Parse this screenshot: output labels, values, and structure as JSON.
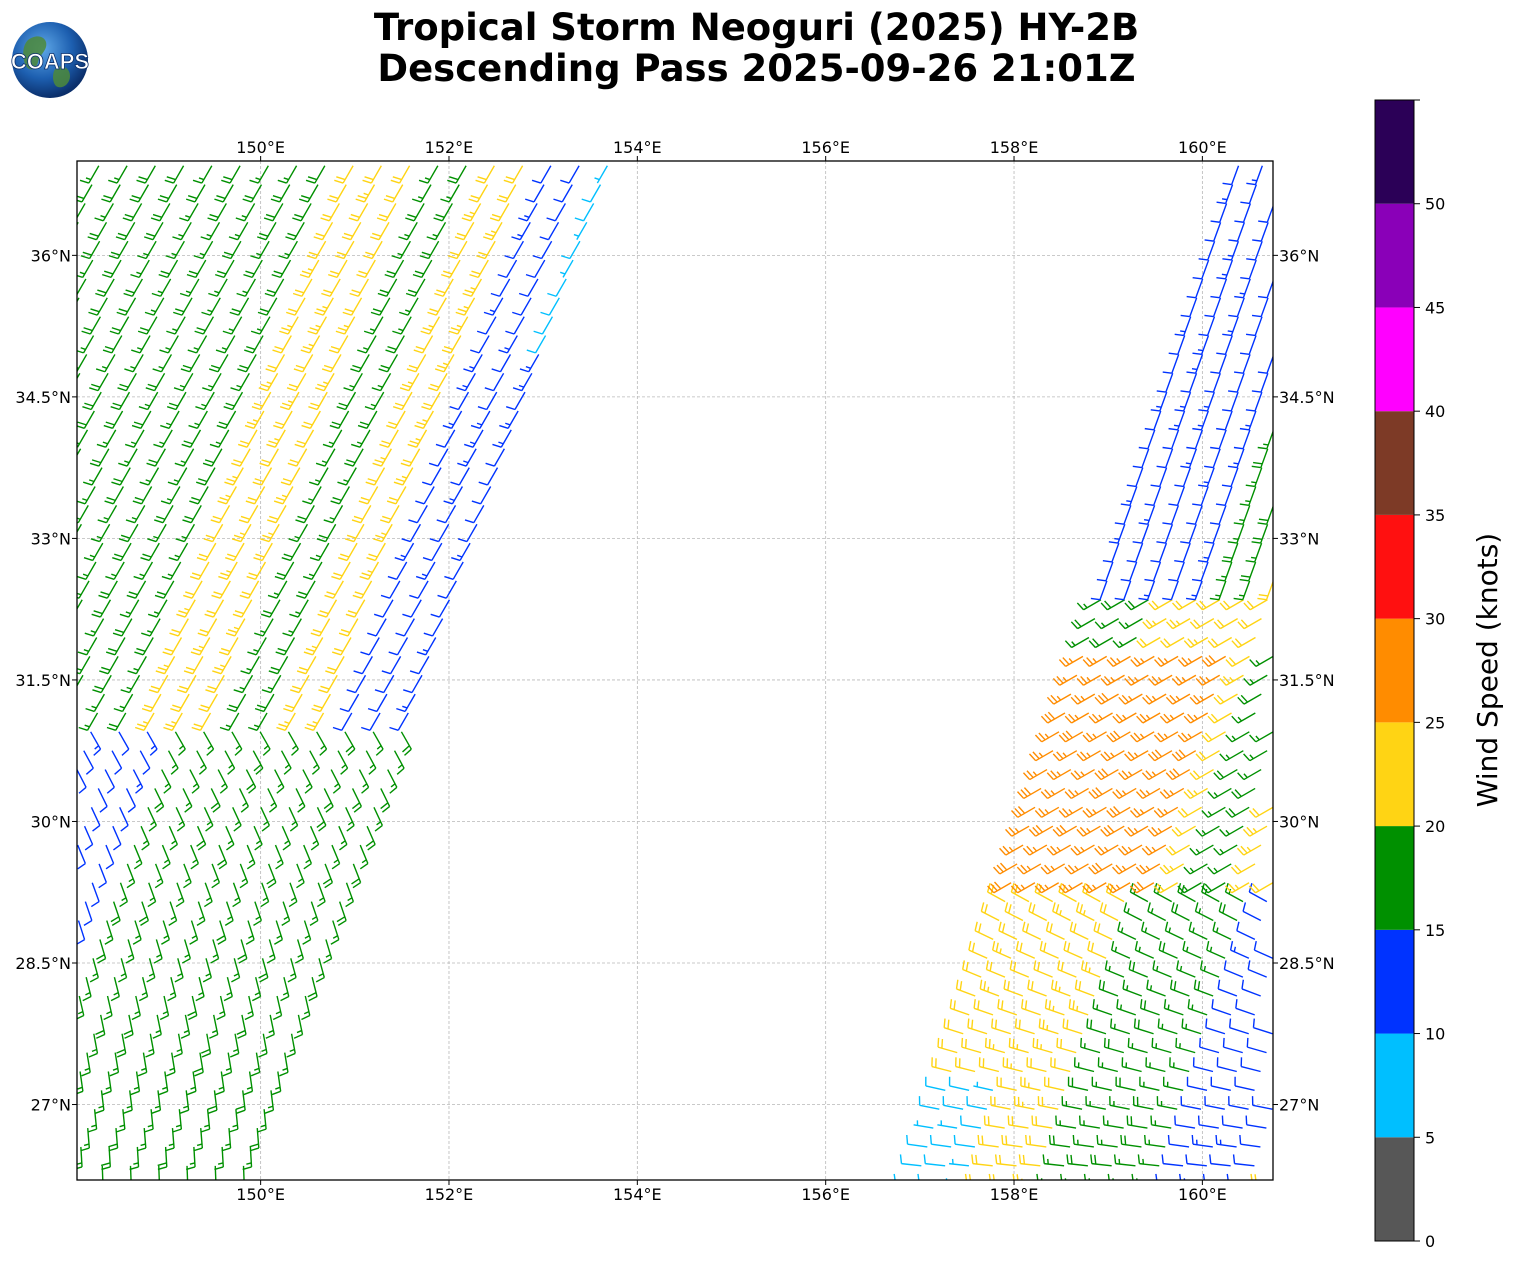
{
  "title_line1": "Tropical Storm Neoguri (2025) HY-2B",
  "title_line2": "Descending Pass 2025-09-26 21:01Z",
  "logo_text": "COAPS",
  "map": {
    "lon_range": [
      148.05,
      160.75
    ],
    "lat_range": [
      26.2,
      37.0
    ],
    "lon_ticks": [
      {
        "value": 150,
        "label": "150°E"
      },
      {
        "value": 152,
        "label": "152°E"
      },
      {
        "value": 154,
        "label": "154°E"
      },
      {
        "value": 156,
        "label": "156°E"
      },
      {
        "value": 158,
        "label": "158°E"
      },
      {
        "value": 160,
        "label": "160°E"
      }
    ],
    "lat_ticks": [
      {
        "value": 27.0,
        "label": "27°N"
      },
      {
        "value": 28.5,
        "label": "28.5°N"
      },
      {
        "value": 30.0,
        "label": "30°N"
      },
      {
        "value": 31.5,
        "label": "31.5°N"
      },
      {
        "value": 33.0,
        "label": "33°N"
      },
      {
        "value": 34.5,
        "label": "34.5°N"
      },
      {
        "value": 36.0,
        "label": "36°N"
      }
    ],
    "grid": true,
    "swaths": [
      {
        "name": "west",
        "leading_edge": [
          [
            153.7,
            37.0
          ],
          [
            149.8,
            26.3
          ]
        ],
        "width_deg_lon": 5.7
      },
      {
        "name": "east",
        "leading_edge": [
          [
            157.0,
            26.3
          ],
          [
            160.4,
            37.0
          ]
        ],
        "width_deg_lon": 4.8
      }
    ]
  },
  "colorbar": {
    "label": "Wind Speed (knots)",
    "tick_values": [
      0,
      5,
      10,
      15,
      20,
      25,
      30,
      35,
      40,
      45,
      50
    ],
    "bins": [
      {
        "min": 0,
        "max": 5,
        "color": "#575757"
      },
      {
        "min": 5,
        "max": 10,
        "color": "#00bfff"
      },
      {
        "min": 10,
        "max": 15,
        "color": "#0033ff"
      },
      {
        "min": 15,
        "max": 20,
        "color": "#009000"
      },
      {
        "min": 20,
        "max": 25,
        "color": "#ffd414"
      },
      {
        "min": 25,
        "max": 30,
        "color": "#ff8c00"
      },
      {
        "min": 30,
        "max": 35,
        "color": "#ff1010"
      },
      {
        "min": 35,
        "max": 40,
        "color": "#7d3a26"
      },
      {
        "min": 40,
        "max": 45,
        "color": "#ff00ff"
      },
      {
        "min": 45,
        "max": 50,
        "color": "#8a00b8"
      },
      {
        "min": 50,
        "max": 55,
        "color": "#2b0057"
      }
    ]
  }
}
